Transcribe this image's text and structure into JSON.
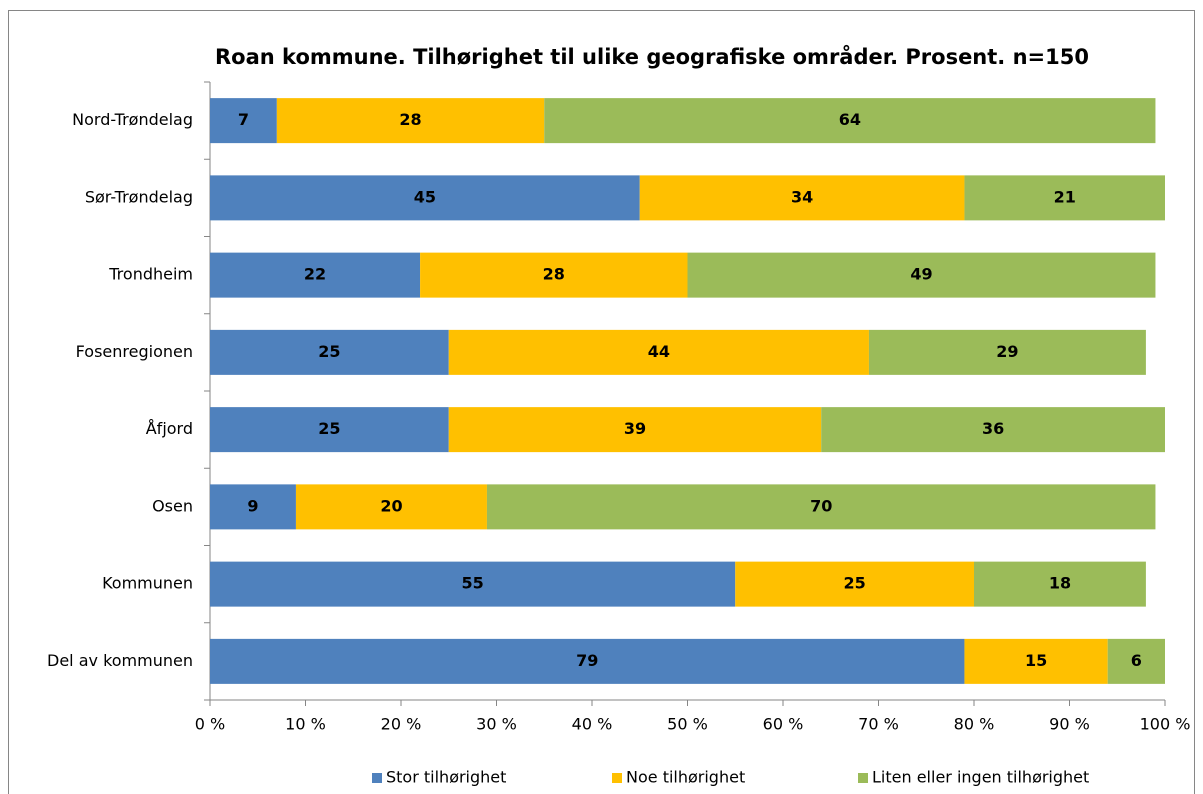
{
  "chart_data": {
    "type": "stacked_barh",
    "title": "Roan kommune. Tilhørighet til ulike geografiske områder. Prosent. n=150",
    "categories": [
      "Nord-Trøndelag",
      "Sør-Trøndelag",
      "Trondheim",
      "Fosenregionen",
      "Åfjord",
      "Osen",
      "Kommunen",
      "Del av kommunen"
    ],
    "series": [
      {
        "name": "Stor tilhørighet",
        "color": "#4f81bd",
        "values": [
          7,
          45,
          22,
          25,
          25,
          9,
          55,
          79
        ]
      },
      {
        "name": "Noe tilhørighet",
        "color": "#ffc000",
        "values": [
          28,
          34,
          28,
          44,
          39,
          20,
          25,
          15
        ]
      },
      {
        "name": "Liten eller ingen tilhørighet",
        "color": "#9bbb59",
        "values": [
          64,
          21,
          49,
          29,
          36,
          70,
          18,
          6
        ]
      }
    ],
    "xlim": [
      0,
      100
    ],
    "xticks": [
      {
        "value": 0,
        "label": "0 %"
      },
      {
        "value": 10,
        "label": "10 %"
      },
      {
        "value": 20,
        "label": "20 %"
      },
      {
        "value": 30,
        "label": "30 %"
      },
      {
        "value": 40,
        "label": "40 %"
      },
      {
        "value": 50,
        "label": "50 %"
      },
      {
        "value": 60,
        "label": "60 %"
      },
      {
        "value": 70,
        "label": "70 %"
      },
      {
        "value": 80,
        "label": "80 %"
      },
      {
        "value": 90,
        "label": "90 %"
      },
      {
        "value": 100,
        "label": "100 %"
      }
    ],
    "grid": false,
    "legend": "bottom"
  }
}
